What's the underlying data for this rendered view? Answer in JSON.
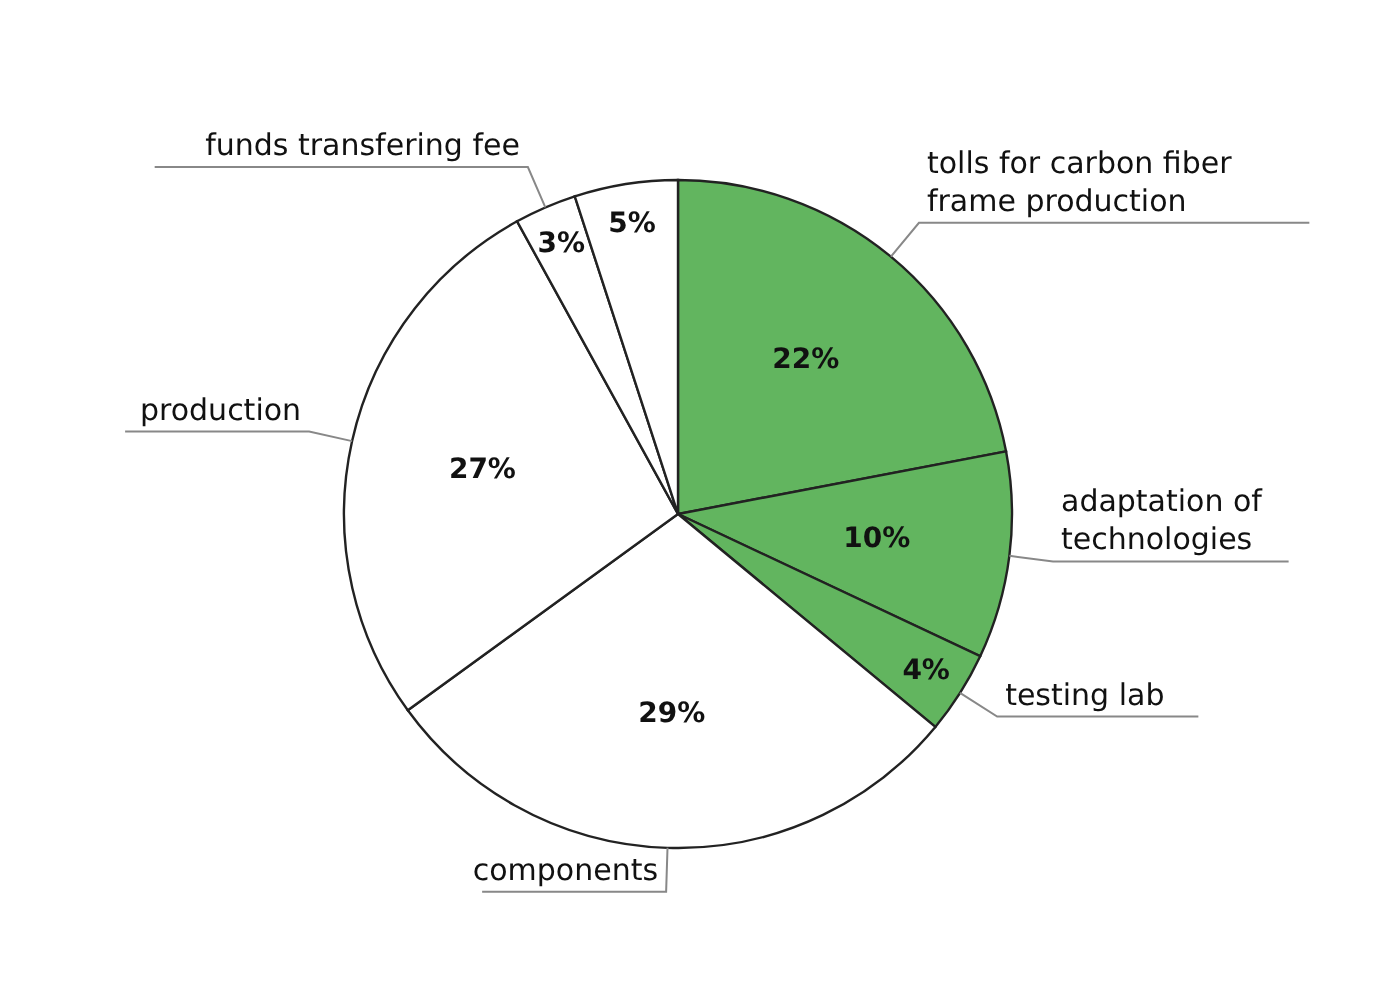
{
  "chart_data": {
    "type": "pie",
    "categories": [
      "tolls for carbon fiber frame production",
      "adaptation of technologies",
      "testing lab",
      "components",
      "production",
      "funds transfering fee",
      null
    ],
    "values": [
      22,
      10,
      4,
      29,
      27,
      3,
      5
    ],
    "value_labels": [
      "22%",
      "10%",
      "4%",
      "29%",
      "27%",
      "3%",
      "5%"
    ],
    "colors": [
      "#62b55f",
      "#62b55f",
      "#62b55f",
      "#ffffff",
      "#ffffff",
      "#ffffff",
      "#ffffff"
    ]
  }
}
